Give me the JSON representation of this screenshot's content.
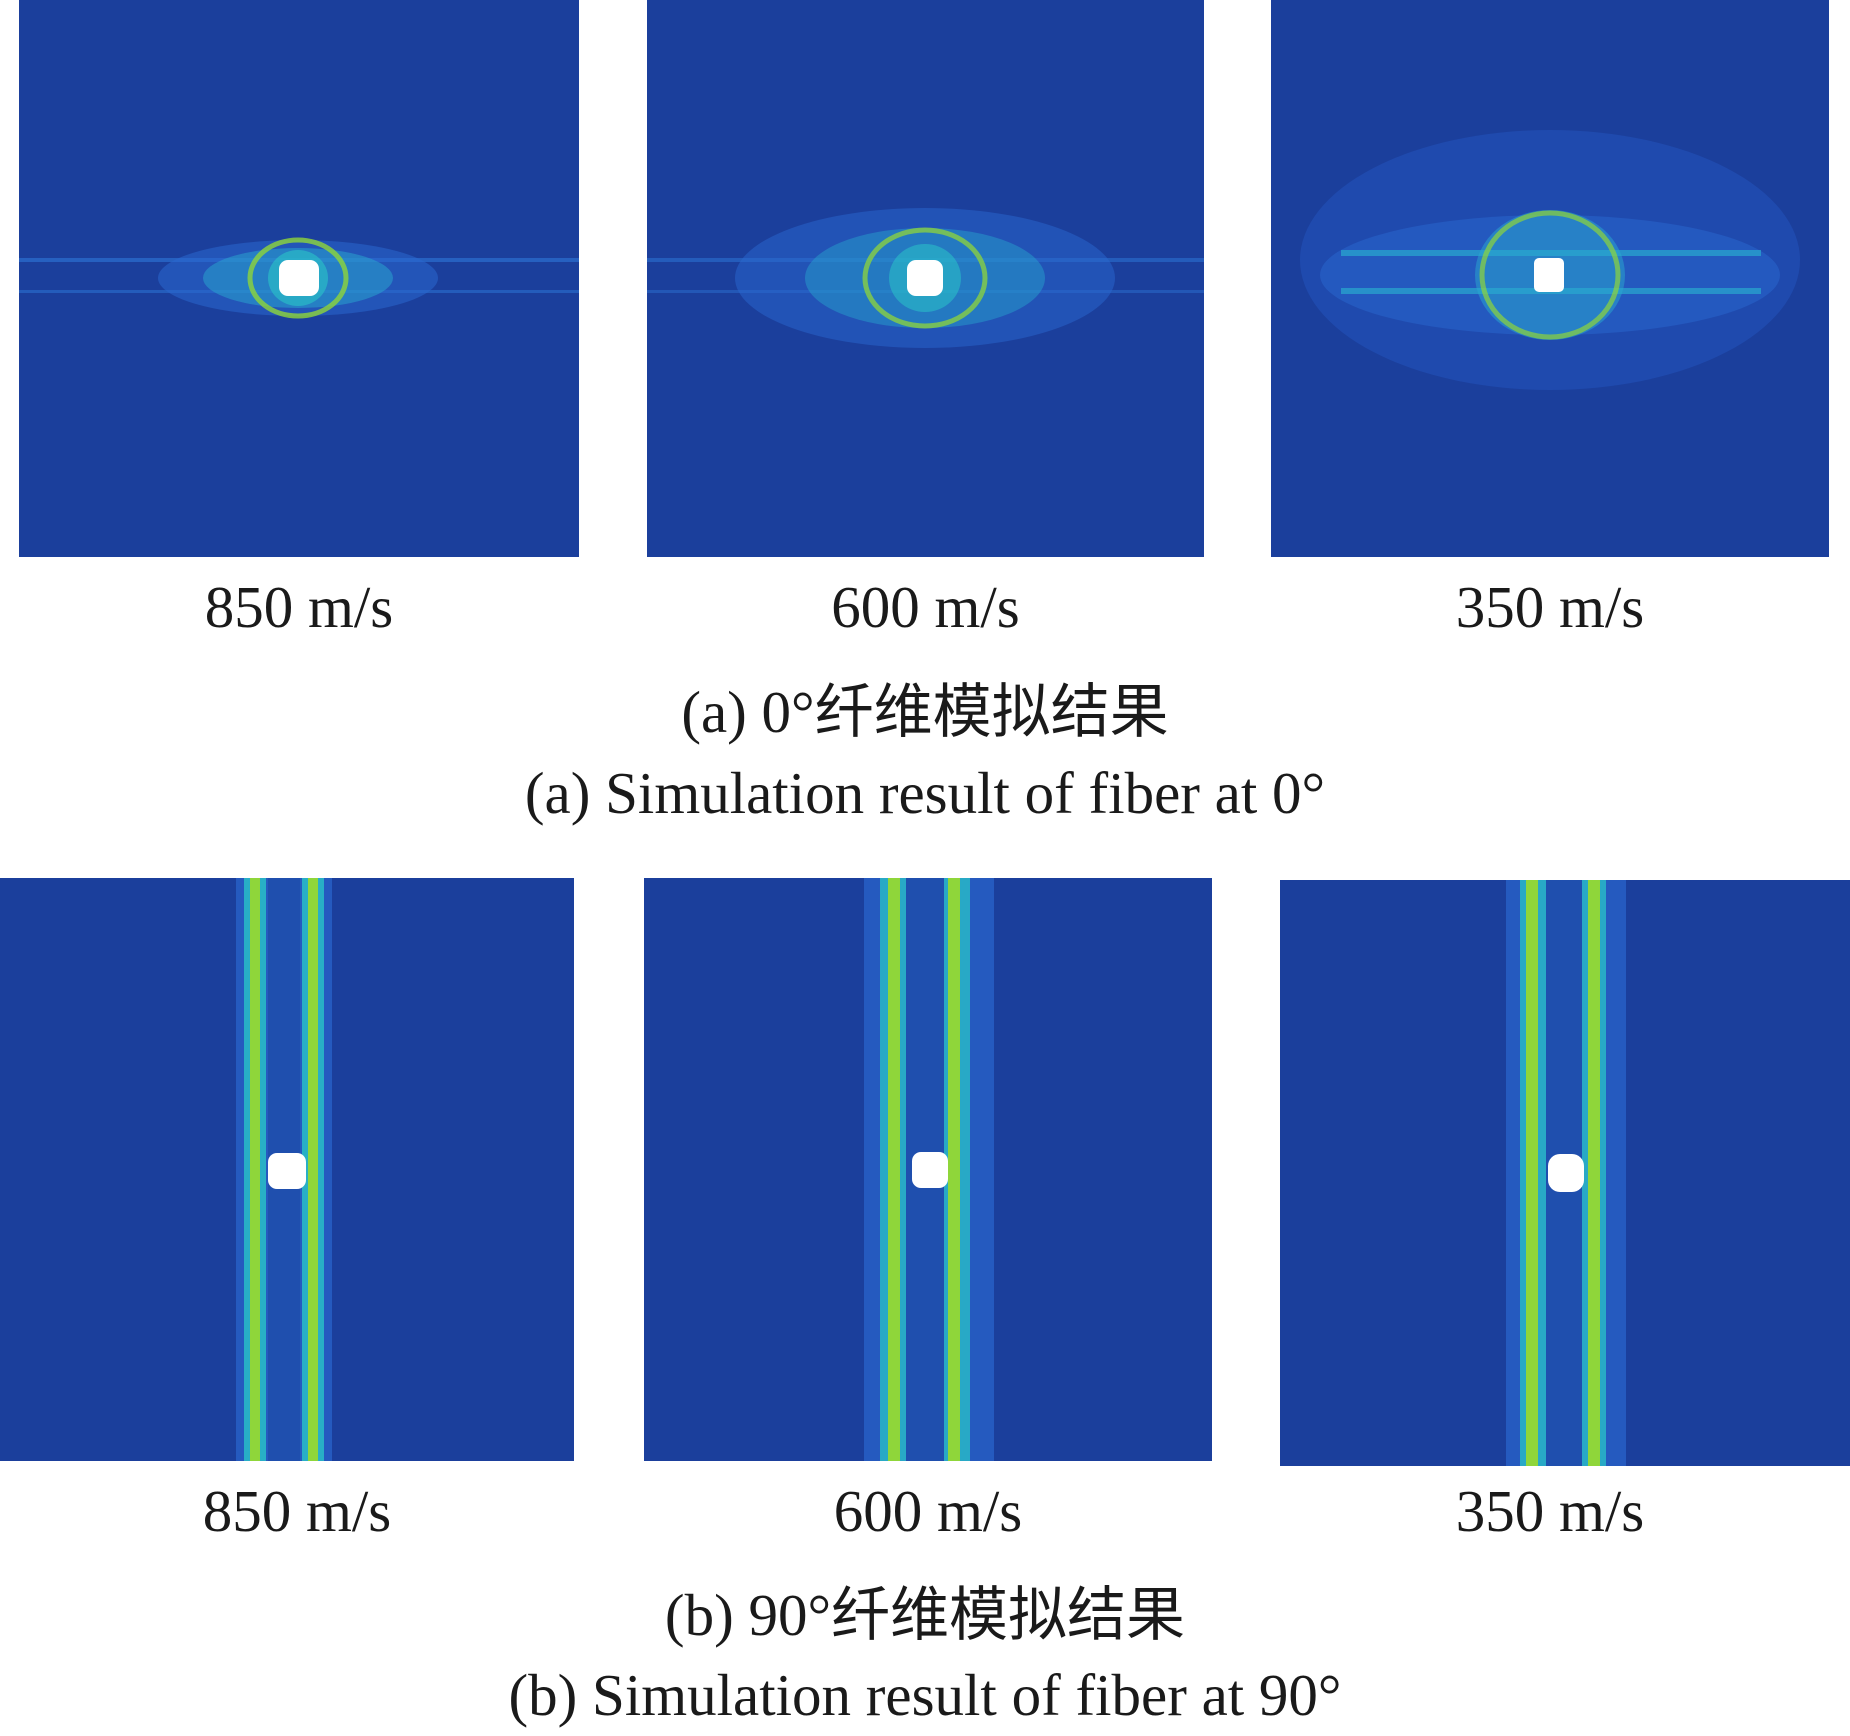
{
  "row_a": {
    "panels": [
      {
        "speed_label": "850 m/s",
        "fiber_angle": "0°"
      },
      {
        "speed_label": "600 m/s",
        "fiber_angle": "0°"
      },
      {
        "speed_label": "350 m/s",
        "fiber_angle": "0°"
      }
    ],
    "caption_cn": "(a) 0°纤维模拟结果",
    "caption_en": "(a) Simulation result of fiber at 0°"
  },
  "row_b": {
    "panels": [
      {
        "speed_label": "850 m/s",
        "fiber_angle": "90°"
      },
      {
        "speed_label": "600 m/s",
        "fiber_angle": "90°"
      },
      {
        "speed_label": "350 m/s",
        "fiber_angle": "90°"
      }
    ],
    "caption_cn": "(b) 90°纤维模拟结果",
    "caption_en": "(b) Simulation result of fiber at 90°"
  },
  "colors": {
    "background_field": "#1b3f9c",
    "damage_low": "#2b7fd6",
    "damage_mid": "#29c4c8",
    "damage_high": "#8fd63a",
    "impact_hole": "#ffffff"
  }
}
